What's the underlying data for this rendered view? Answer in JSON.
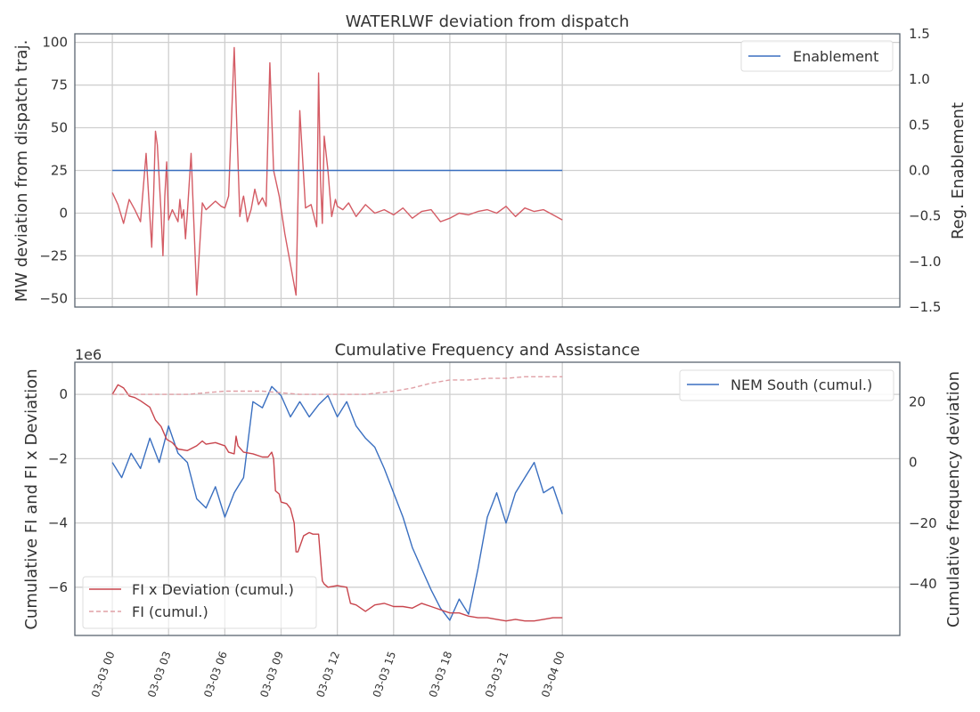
{
  "chart_data": [
    {
      "type": "line",
      "title": "WATERLWF deviation from dispatch",
      "ylabel": "MW deviation from dispatch traj.",
      "y2label": "Reg. Enablement",
      "ylim": [
        -55,
        105
      ],
      "yticks": [
        -50,
        -25,
        0,
        25,
        50,
        75,
        100
      ],
      "y2lim": [
        -1.5,
        1.5
      ],
      "y2ticks": [
        "-1.5",
        "-1.0",
        "-0.5",
        "0.0",
        "0.5",
        "1.0",
        "1.5"
      ],
      "xlim_hours": [
        -2,
        42
      ],
      "grid": true,
      "legend": "top-right",
      "series": [
        {
          "name": "",
          "axis": "left",
          "color": "#d45c65",
          "x_hours": [
            0,
            0.3,
            0.6,
            0.9,
            1.2,
            1.5,
            1.8,
            2.1,
            2.2,
            2.3,
            2.4,
            2.6,
            2.7,
            2.8,
            2.9,
            3.0,
            3.2,
            3.5,
            3.6,
            3.7,
            3.8,
            3.9,
            4.0,
            4.2,
            4.5,
            4.8,
            5.0,
            5.2,
            5.5,
            5.8,
            6.0,
            6.2,
            6.5,
            6.8,
            6.95,
            7.0,
            7.1,
            7.2,
            7.4,
            7.6,
            7.8,
            8.0,
            8.2,
            8.4,
            8.6,
            8.9,
            9.2,
            9.5,
            9.8,
            10.0,
            10.3,
            10.6,
            10.9,
            11.0,
            11.1,
            11.2,
            11.3,
            11.5,
            11.7,
            11.9,
            12.0,
            12.3,
            12.6,
            13.0,
            13.5,
            14.0,
            14.5,
            15.0,
            15.5,
            16.0,
            16.5,
            17.0,
            17.5,
            18.0,
            18.5,
            19.0,
            19.5,
            20.0,
            20.5,
            21.0,
            21.5,
            22.0,
            22.5,
            23.0,
            23.5,
            24.0
          ],
          "values": [
            12,
            5,
            -6,
            8,
            2,
            -5,
            35,
            -20,
            10,
            48,
            40,
            0,
            -25,
            10,
            30,
            -4,
            2,
            -5,
            8,
            -3,
            2,
            -15,
            0,
            35,
            -48,
            6,
            2,
            4,
            7,
            4,
            3,
            10,
            97,
            -2,
            8,
            10,
            3,
            -5,
            2,
            14,
            5,
            9,
            4,
            88,
            25,
            10,
            -12,
            -30,
            -48,
            60,
            3,
            5,
            -8,
            82,
            20,
            -6,
            45,
            25,
            -2,
            8,
            4,
            2,
            6,
            -2,
            5,
            0,
            2,
            -1,
            3,
            -3,
            1,
            2,
            -5,
            -3,
            0,
            -1,
            1,
            2,
            0,
            4,
            -2,
            3,
            1,
            2,
            -1,
            -4
          ]
        },
        {
          "name": "Enablement",
          "axis": "right",
          "color": "#3a6fc0",
          "x_hours": [
            0,
            24
          ],
          "values": [
            0.0,
            0.0
          ]
        }
      ]
    },
    {
      "type": "line",
      "title": "Cumulative Frequency and Assistance",
      "ylabel": "Cumulative FI and FI x Deviation",
      "y2label": "Cumulative frequency deviation",
      "offset_text": "1e6",
      "ylim": [
        -7.5,
        1.0
      ],
      "yticks": [
        -6,
        -4,
        -2,
        0
      ],
      "y2lim": [
        -57,
        33
      ],
      "y2ticks": [
        -40,
        -20,
        0,
        20
      ],
      "xlim_hours": [
        -2,
        42
      ],
      "xticks": [
        "03-03 00",
        "03-03 03",
        "03-03 06",
        "03-03 09",
        "03-03 12",
        "03-03 15",
        "03-03 18",
        "03-03 21",
        "03-04 00"
      ],
      "grid": true,
      "series": [
        {
          "name": "NEM South (cumul.)",
          "axis": "right",
          "legend": "top-right",
          "color": "#3a6fc0",
          "x_hours": [
            0,
            0.5,
            1.0,
            1.5,
            2.0,
            2.5,
            3.0,
            3.5,
            4.0,
            4.5,
            5.0,
            5.5,
            6.0,
            6.5,
            6.8,
            7.0,
            7.5,
            8.0,
            8.5,
            9.0,
            9.5,
            10.0,
            10.5,
            11.0,
            11.5,
            12.0,
            12.5,
            13.0,
            13.5,
            14.0,
            14.5,
            15.0,
            15.5,
            16.0,
            16.5,
            17.0,
            17.5,
            18.0,
            18.5,
            19.0,
            19.5,
            20.0,
            20.5,
            21.0,
            21.5,
            22.0,
            22.5,
            23.0,
            23.5,
            24.0
          ],
          "values": [
            0,
            -5,
            3,
            -2,
            8,
            0,
            12,
            3,
            0,
            -12,
            -15,
            -8,
            -18,
            -10,
            -7,
            -5,
            20,
            18,
            25,
            22,
            15,
            20,
            15,
            19,
            22,
            15,
            20,
            12,
            8,
            5,
            -2,
            -10,
            -18,
            -28,
            -35,
            -42,
            -48,
            -52,
            -45,
            -50,
            -35,
            -18,
            -10,
            -20,
            -10,
            -5,
            0,
            -10,
            -8,
            -17
          ]
        },
        {
          "name": "FI x Deviation (cumul.)",
          "axis": "left",
          "legend": "lower-left",
          "color": "#c8454d",
          "x_hours": [
            0,
            0.3,
            0.6,
            0.9,
            1.2,
            1.5,
            2.0,
            2.3,
            2.6,
            2.9,
            3.2,
            3.5,
            4.0,
            4.5,
            4.8,
            5.0,
            5.5,
            6.0,
            6.2,
            6.5,
            6.6,
            6.7,
            7.0,
            7.5,
            8.0,
            8.3,
            8.5,
            8.6,
            8.7,
            8.9,
            9.0,
            9.3,
            9.5,
            9.7,
            9.8,
            9.9,
            10.2,
            10.5,
            10.7,
            11.0,
            11.2,
            11.3,
            11.5,
            12.0,
            12.5,
            12.7,
            13.0,
            13.5,
            14.0,
            14.5,
            15.0,
            15.5,
            16.0,
            16.5,
            17.0,
            17.5,
            18.0,
            18.5,
            19.0,
            19.5,
            20.0,
            20.5,
            21.0,
            21.5,
            22.0,
            22.5,
            23.0,
            23.5,
            24.0
          ],
          "values": [
            0.0,
            0.3,
            0.2,
            -0.05,
            -0.1,
            -0.2,
            -0.4,
            -0.8,
            -1.0,
            -1.4,
            -1.5,
            -1.7,
            -1.75,
            -1.6,
            -1.45,
            -1.55,
            -1.5,
            -1.6,
            -1.8,
            -1.85,
            -1.3,
            -1.6,
            -1.8,
            -1.85,
            -1.95,
            -1.95,
            -1.8,
            -2.0,
            -3.0,
            -3.1,
            -3.35,
            -3.4,
            -3.55,
            -4.0,
            -4.9,
            -4.9,
            -4.4,
            -4.3,
            -4.35,
            -4.35,
            -5.8,
            -5.9,
            -6.0,
            -5.95,
            -6.0,
            -6.5,
            -6.55,
            -6.75,
            -6.55,
            -6.5,
            -6.6,
            -6.6,
            -6.65,
            -6.5,
            -6.6,
            -6.7,
            -6.8,
            -6.8,
            -6.9,
            -6.95,
            -6.95,
            -7.0,
            -7.05,
            -7.0,
            -7.05,
            -7.05,
            -7.0,
            -6.95,
            -6.95
          ]
        },
        {
          "name": "FI (cumul.)",
          "axis": "left",
          "legend": "lower-left",
          "dashed": true,
          "color": "#e0a0a6",
          "x_hours": [
            0,
            2,
            4,
            6,
            8,
            10,
            12,
            13.5,
            15,
            16,
            17,
            18,
            19,
            20,
            21,
            22,
            23,
            24
          ],
          "values": [
            0.0,
            0.0,
            0.0,
            0.1,
            0.1,
            0.0,
            0.0,
            0.0,
            0.1,
            0.2,
            0.35,
            0.45,
            0.45,
            0.5,
            0.5,
            0.55,
            0.55,
            0.55
          ]
        }
      ]
    }
  ]
}
